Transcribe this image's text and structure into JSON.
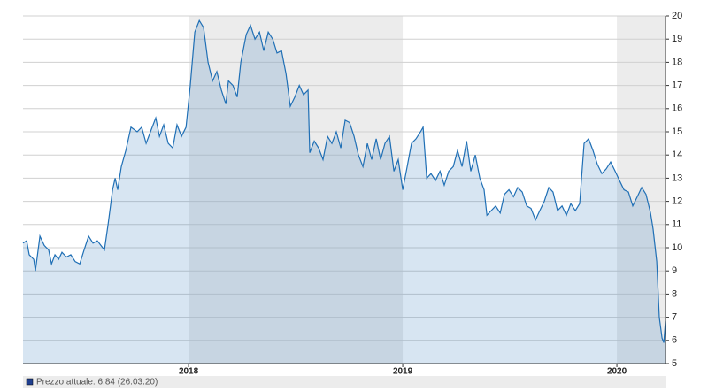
{
  "chart_data": {
    "type": "area",
    "xlim": [
      2017.227,
      2020.227
    ],
    "xticks": [
      2018,
      2019,
      2020
    ],
    "ylim": [
      5,
      20
    ],
    "yticks": [
      5,
      6,
      7,
      8,
      9,
      10,
      11,
      12,
      13,
      14,
      15,
      16,
      17,
      18,
      19,
      20
    ],
    "grid": true,
    "series": [
      {
        "name": "Prezzo attuale: 6,84 (26.03.20)",
        "color": "#1f6fb5",
        "x": [
          2017.227,
          2017.244,
          2017.256,
          2017.277,
          2017.285,
          2017.306,
          2017.326,
          2017.347,
          2017.36,
          2017.376,
          2017.393,
          2017.409,
          2017.43,
          2017.45,
          2017.471,
          2017.492,
          2017.512,
          2017.533,
          2017.554,
          2017.574,
          2017.607,
          2017.624,
          2017.645,
          2017.657,
          2017.669,
          2017.686,
          2017.707,
          2017.731,
          2017.76,
          2017.781,
          2017.802,
          2017.822,
          2017.847,
          2017.864,
          2017.884,
          2017.905,
          2017.926,
          2017.946,
          2017.967,
          2017.988,
          2018.008,
          2018.029,
          2018.05,
          2018.07,
          2018.091,
          2018.112,
          2018.132,
          2018.153,
          2018.174,
          2018.186,
          2018.207,
          2018.227,
          2018.244,
          2018.269,
          2018.289,
          2018.31,
          2018.331,
          2018.351,
          2018.372,
          2018.393,
          2018.413,
          2018.434,
          2018.455,
          2018.475,
          2018.496,
          2018.517,
          2018.537,
          2018.558,
          2018.566,
          2018.587,
          2018.607,
          2018.628,
          2018.649,
          2018.669,
          2018.69,
          2018.711,
          2018.731,
          2018.752,
          2018.773,
          2018.793,
          2018.814,
          2018.835,
          2018.855,
          2018.876,
          2018.897,
          2018.917,
          2018.938,
          2018.959,
          2018.979,
          2019.0,
          2019.021,
          2019.041,
          2019.062,
          2019.083,
          2019.095,
          2019.112,
          2019.132,
          2019.153,
          2019.174,
          2019.194,
          2019.215,
          2019.236,
          2019.256,
          2019.277,
          2019.298,
          2019.318,
          2019.339,
          2019.36,
          2019.38,
          2019.393,
          2019.413,
          2019.434,
          2019.455,
          2019.475,
          2019.496,
          2019.517,
          2019.537,
          2019.558,
          2019.579,
          2019.599,
          2019.62,
          2019.64,
          2019.661,
          2019.682,
          2019.702,
          2019.723,
          2019.744,
          2019.764,
          2019.785,
          2019.806,
          2019.826,
          2019.847,
          2019.868,
          2019.888,
          2019.909,
          2019.93,
          2019.95,
          2019.971,
          2019.992,
          2020.012,
          2020.033,
          2020.054,
          2020.074,
          2020.095,
          2020.116,
          2020.136,
          2020.157,
          2020.169,
          2020.186,
          2020.198,
          2020.211,
          2020.219,
          2020.227
        ],
        "values": [
          10.2,
          10.3,
          9.7,
          9.5,
          9.0,
          10.5,
          10.1,
          9.9,
          9.3,
          9.7,
          9.5,
          9.8,
          9.6,
          9.7,
          9.4,
          9.3,
          9.9,
          10.5,
          10.2,
          10.3,
          9.9,
          11.0,
          12.5,
          13.0,
          12.5,
          13.5,
          14.2,
          15.2,
          15.0,
          15.2,
          14.5,
          15.0,
          15.6,
          14.8,
          15.3,
          14.5,
          14.3,
          15.3,
          14.8,
          15.2,
          17.0,
          19.3,
          19.8,
          19.5,
          18.0,
          17.2,
          17.6,
          16.8,
          16.2,
          17.2,
          17.0,
          16.5,
          18.0,
          19.2,
          19.6,
          19.0,
          19.3,
          18.5,
          19.3,
          19.0,
          18.4,
          18.5,
          17.5,
          16.1,
          16.5,
          17.0,
          16.6,
          16.8,
          14.1,
          14.6,
          14.3,
          13.8,
          14.8,
          14.5,
          15.0,
          14.3,
          15.5,
          15.4,
          14.8,
          14.0,
          13.5,
          14.5,
          13.8,
          14.7,
          13.8,
          14.5,
          14.8,
          13.3,
          13.8,
          12.5,
          13.5,
          14.5,
          14.7,
          15.0,
          15.2,
          13.0,
          13.2,
          12.9,
          13.3,
          12.7,
          13.3,
          13.5,
          14.2,
          13.5,
          14.6,
          13.3,
          14.0,
          13.0,
          12.5,
          11.4,
          11.6,
          11.8,
          11.5,
          12.3,
          12.5,
          12.2,
          12.6,
          12.4,
          11.8,
          11.7,
          11.2,
          11.6,
          12.0,
          12.6,
          12.4,
          11.6,
          11.8,
          11.4,
          11.9,
          11.6,
          11.9,
          14.5,
          14.7,
          14.2,
          13.6,
          13.2,
          13.4,
          13.7,
          13.3,
          12.9,
          12.5,
          12.4,
          11.8,
          12.2,
          12.6,
          12.3,
          11.5,
          10.8,
          9.4,
          7.0,
          6.1,
          5.9,
          6.84
        ]
      }
    ]
  }
}
